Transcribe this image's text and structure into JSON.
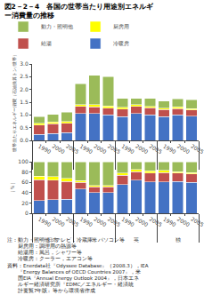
{
  "chart_data": [
    {
      "type": "bar",
      "title": "図2－2－4　各国の世帯当たり用途別エネルギ\nー消費量の推移",
      "ylabel": "世帯当たりエネルギー消費（石油換算トン/世帯）",
      "stacked": true,
      "grid": false,
      "legend": "top",
      "categories": [
        [
          "日本",
          "1990"
        ],
        [
          "日本",
          "2000"
        ],
        [
          "日本",
          "2005"
        ],
        [
          "米",
          "1990"
        ],
        [
          "米",
          "2000"
        ],
        [
          "米",
          "2005"
        ],
        [
          "英",
          "1990"
        ],
        [
          "英",
          "2000"
        ],
        [
          "英",
          "2005"
        ],
        [
          "独",
          "1990"
        ],
        [
          "独",
          "2000"
        ],
        [
          "独",
          "2005"
        ]
      ],
      "series": [
        {
          "name": "冷暖房",
          "color": "#4472c4",
          "values": [
            0.23,
            0.27,
            0.3,
            1.05,
            1.05,
            1.0,
            0.93,
            1.05,
            1.0,
            0.93,
            1.0,
            0.95
          ]
        },
        {
          "name": "給湯",
          "color": "#c0504d",
          "values": [
            0.38,
            0.38,
            0.38,
            0.28,
            0.27,
            0.27,
            0.3,
            0.28,
            0.28,
            0.28,
            0.25,
            0.25
          ]
        },
        {
          "name": "厨房用",
          "color": "#ffff00",
          "values": [
            0.07,
            0.07,
            0.06,
            0.08,
            0.08,
            0.08,
            0.07,
            0.07,
            0.06,
            0.06,
            0.06,
            0.05
          ]
        },
        {
          "name": "動力・照明他",
          "color": "#9bbb59",
          "values": [
            0.25,
            0.3,
            0.37,
            0.82,
            1.15,
            1.15,
            0.35,
            0.25,
            0.3,
            0.28,
            0.32,
            0.35
          ]
        }
      ],
      "ylim": [
        0,
        3.0
      ],
      "yticks": [
        {
          "value": 0,
          "label": "0.0"
        },
        0.5,
        {
          "value": 1,
          "label": "1.0"
        },
        1.5,
        {
          "value": 2,
          "label": "2.0"
        },
        2.5,
        {
          "value": 3,
          "label": "3.0"
        }
      ]
    },
    {
      "type": "bar",
      "ylabel": "（％）",
      "stacked": true,
      "grid": false,
      "categories": [
        [
          "日本",
          "1990"
        ],
        [
          "日本",
          "2000"
        ],
        [
          "日本",
          "2005"
        ],
        [
          "米",
          "1990"
        ],
        [
          "米",
          "2000"
        ],
        [
          "米",
          "2005"
        ],
        [
          "英",
          "1990"
        ],
        [
          "英",
          "2000"
        ],
        [
          "英",
          "2005"
        ],
        [
          "独",
          "1990"
        ],
        [
          "独",
          "2000"
        ],
        [
          "独",
          "2005"
        ]
      ],
      "series": [
        {
          "name": "冷暖房",
          "color": "#4472c4",
          "values": [
            25,
            26,
            27,
            47,
            40,
            40,
            56,
            64,
            61,
            61,
            62,
            60
          ]
        },
        {
          "name": "給湯",
          "color": "#c0504d",
          "values": [
            40,
            38,
            35,
            13,
            11,
            11,
            18,
            17,
            17,
            18,
            16,
            16
          ]
        },
        {
          "name": "厨房用",
          "color": "#ffff00",
          "values": [
            7,
            7,
            6,
            3,
            3,
            3,
            4,
            4,
            4,
            4,
            3,
            3
          ]
        },
        {
          "name": "動力・照明他",
          "color": "#9bbb59",
          "values": [
            28,
            29,
            32,
            37,
            46,
            46,
            22,
            15,
            18,
            17,
            19,
            21
          ]
        }
      ],
      "ylim": [
        0,
        100
      ],
      "yticks": [
        0,
        20,
        40,
        60,
        80,
        100
      ],
      "annotations": [
        "注：動力・照明他：テレビ，冷蔵庫，パソコン等",
        "　　厨房用：調理用の熱源等",
        "　　給湯用：風呂，シャワー等",
        "　　冷暖房：クーラー，エアコン等",
        "資料：Enerdata社『Odyssee Database』（2008.3），IEA",
        "　　『Energy Balances of OECD Countries 2007』，米",
        "　　国EIA『Annual Energy Outlook 2004』，日本エネ",
        "　　ルギー経済研究所『EDMC／エネルギー・経済統",
        "　　計要覧7年版』等から環境省作成"
      ]
    }
  ]
}
